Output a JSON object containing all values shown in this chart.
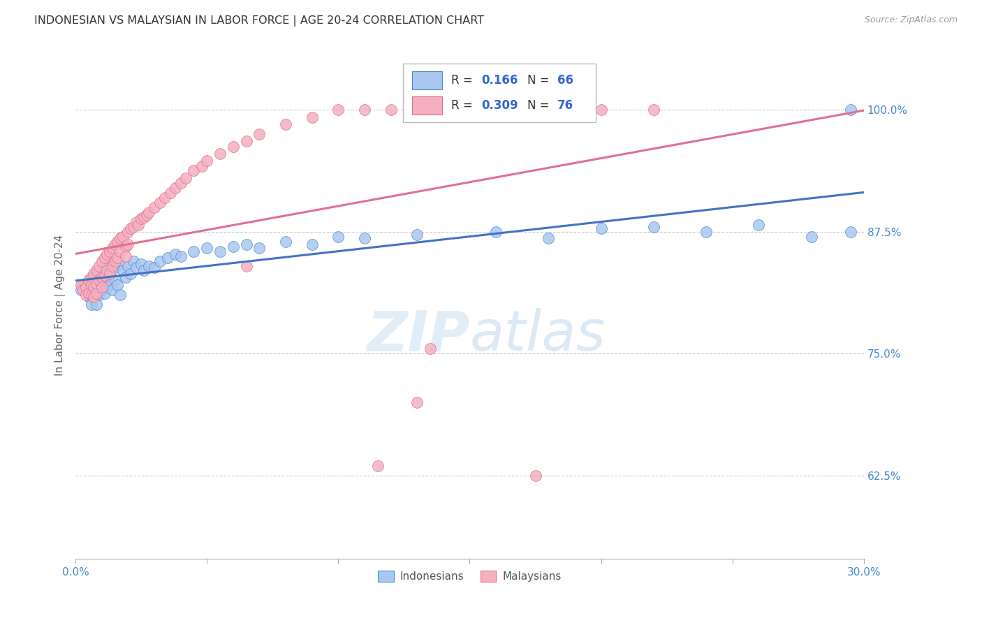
{
  "title": "INDONESIAN VS MALAYSIAN IN LABOR FORCE | AGE 20-24 CORRELATION CHART",
  "source": "Source: ZipAtlas.com",
  "ylabel": "In Labor Force | Age 20-24",
  "yticks": [
    "62.5%",
    "75.0%",
    "87.5%",
    "100.0%"
  ],
  "ytick_vals": [
    0.625,
    0.75,
    0.875,
    1.0
  ],
  "xmin": 0.0,
  "xmax": 0.3,
  "ymin": 0.54,
  "ymax": 1.06,
  "legend_R_blue": "0.166",
  "legend_N_blue": "66",
  "legend_R_pink": "0.309",
  "legend_N_pink": "76",
  "blue_fill": "#a8c8f0",
  "pink_fill": "#f5b0c0",
  "blue_edge": "#5588cc",
  "pink_edge": "#dd7090",
  "line_blue_color": "#4472c4",
  "line_pink_color": "#e07090",
  "watermark_zip": "ZIP",
  "watermark_atlas": "atlas",
  "indonesian_x": [
    0.002,
    0.003,
    0.004,
    0.005,
    0.005,
    0.006,
    0.006,
    0.007,
    0.007,
    0.007,
    0.008,
    0.008,
    0.008,
    0.009,
    0.009,
    0.01,
    0.01,
    0.01,
    0.011,
    0.011,
    0.012,
    0.012,
    0.013,
    0.013,
    0.014,
    0.014,
    0.015,
    0.015,
    0.016,
    0.016,
    0.017,
    0.017,
    0.018,
    0.019,
    0.02,
    0.021,
    0.022,
    0.023,
    0.025,
    0.026,
    0.028,
    0.03,
    0.032,
    0.035,
    0.038,
    0.04,
    0.045,
    0.05,
    0.055,
    0.06,
    0.065,
    0.07,
    0.08,
    0.09,
    0.1,
    0.11,
    0.13,
    0.16,
    0.18,
    0.2,
    0.22,
    0.24,
    0.26,
    0.28,
    0.295,
    0.295
  ],
  "indonesian_y": [
    0.815,
    0.82,
    0.818,
    0.822,
    0.808,
    0.812,
    0.8,
    0.825,
    0.818,
    0.81,
    0.82,
    0.81,
    0.8,
    0.828,
    0.81,
    0.835,
    0.822,
    0.815,
    0.83,
    0.812,
    0.84,
    0.818,
    0.835,
    0.82,
    0.845,
    0.815,
    0.838,
    0.825,
    0.848,
    0.82,
    0.842,
    0.81,
    0.835,
    0.828,
    0.84,
    0.832,
    0.845,
    0.838,
    0.842,
    0.835,
    0.84,
    0.838,
    0.845,
    0.848,
    0.852,
    0.85,
    0.855,
    0.858,
    0.855,
    0.86,
    0.862,
    0.858,
    0.865,
    0.862,
    0.87,
    0.868,
    0.872,
    0.875,
    0.868,
    0.878,
    0.88,
    0.875,
    0.882,
    0.87,
    0.875,
    1.0
  ],
  "malaysian_x": [
    0.002,
    0.003,
    0.004,
    0.004,
    0.005,
    0.005,
    0.006,
    0.006,
    0.006,
    0.007,
    0.007,
    0.007,
    0.008,
    0.008,
    0.008,
    0.009,
    0.009,
    0.01,
    0.01,
    0.01,
    0.011,
    0.011,
    0.012,
    0.012,
    0.013,
    0.013,
    0.014,
    0.014,
    0.015,
    0.015,
    0.016,
    0.016,
    0.017,
    0.017,
    0.018,
    0.019,
    0.019,
    0.02,
    0.02,
    0.021,
    0.022,
    0.023,
    0.024,
    0.025,
    0.026,
    0.027,
    0.028,
    0.03,
    0.032,
    0.034,
    0.036,
    0.038,
    0.04,
    0.042,
    0.045,
    0.048,
    0.05,
    0.055,
    0.06,
    0.065,
    0.07,
    0.08,
    0.09,
    0.1,
    0.11,
    0.12,
    0.13,
    0.15,
    0.175,
    0.2,
    0.22,
    0.065,
    0.135,
    0.13,
    0.115,
    0.175
  ],
  "malaysian_y": [
    0.82,
    0.815,
    0.818,
    0.81,
    0.825,
    0.812,
    0.828,
    0.82,
    0.81,
    0.832,
    0.818,
    0.808,
    0.835,
    0.822,
    0.812,
    0.84,
    0.825,
    0.845,
    0.828,
    0.818,
    0.848,
    0.83,
    0.852,
    0.835,
    0.855,
    0.832,
    0.858,
    0.84,
    0.862,
    0.845,
    0.865,
    0.848,
    0.868,
    0.855,
    0.87,
    0.86,
    0.85,
    0.875,
    0.862,
    0.878,
    0.88,
    0.885,
    0.882,
    0.888,
    0.89,
    0.892,
    0.895,
    0.9,
    0.905,
    0.91,
    0.915,
    0.92,
    0.925,
    0.93,
    0.938,
    0.942,
    0.948,
    0.955,
    0.962,
    0.968,
    0.975,
    0.985,
    0.992,
    1.0,
    1.0,
    1.0,
    1.0,
    1.0,
    1.0,
    1.0,
    1.0,
    0.84,
    0.755,
    0.7,
    0.635,
    0.625
  ]
}
